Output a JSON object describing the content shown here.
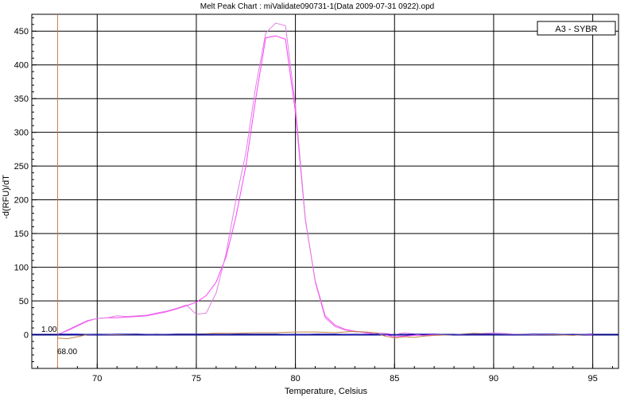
{
  "chart_data": {
    "type": "line",
    "title": "Melt Peak Chart : miValidate090731-1(Data 2009-07-31 0922).opd",
    "xlabel": "Temperature, Celsius",
    "ylabel": "-d(RFU)/dT",
    "xlim": [
      66.7,
      96.3
    ],
    "ylim": [
      -50,
      475
    ],
    "x_ticks": [
      70,
      75,
      80,
      85,
      90,
      95
    ],
    "y_ticks": [
      0,
      50,
      100,
      150,
      200,
      250,
      300,
      350,
      400,
      450
    ],
    "grid": true,
    "legend": {
      "position": "top-right",
      "entries": [
        "A3 - SYBR"
      ]
    },
    "threshold": {
      "value": 0,
      "label": "1.00",
      "color": "#000080"
    },
    "begin_marker": {
      "value": 68.0,
      "label": "68.00",
      "color": "#c87850"
    },
    "series": [
      {
        "color": "#ff40ff",
        "x": [
          68,
          68.5,
          69,
          69.5,
          70,
          70.5,
          71,
          71.5,
          72,
          72.5,
          73,
          73.5,
          74,
          74.5,
          75,
          75.5,
          76,
          76.5,
          77,
          77.5,
          78,
          78.5,
          79,
          79.5,
          80,
          80.5,
          81,
          81.5,
          82,
          82.5,
          83,
          83.5,
          84,
          84.5,
          85,
          85.5,
          86,
          86.5,
          87,
          88,
          89,
          90,
          91,
          92,
          93,
          94,
          95
        ],
        "y": [
          0,
          6,
          13,
          20,
          24,
          25,
          25,
          26,
          27,
          28,
          31,
          34,
          38,
          43,
          48,
          58,
          78,
          115,
          175,
          250,
          350,
          440,
          443,
          438,
          330,
          170,
          80,
          28,
          14,
          8,
          5,
          3,
          1,
          0,
          -3,
          -2,
          -1,
          -1,
          0,
          0,
          1,
          1,
          0,
          1,
          0,
          0,
          0
        ]
      },
      {
        "color": "#e080e0",
        "x": [
          68,
          68.5,
          69,
          69.5,
          70,
          70.5,
          71,
          71.5,
          72,
          72.5,
          73,
          73.5,
          74,
          74.5,
          75,
          75.5,
          76,
          76.5,
          77,
          77.5,
          78,
          78.5,
          79,
          79.5,
          80,
          80.5,
          81,
          81.5,
          82,
          82.5,
          83,
          83.5,
          84,
          84.5,
          85,
          85.5,
          86,
          86.5,
          87,
          88,
          89,
          90,
          91,
          92,
          93,
          94,
          95
        ],
        "y": [
          0,
          7,
          14,
          21,
          24,
          25,
          28,
          27,
          28,
          29,
          32,
          35,
          39,
          44,
          30,
          32,
          62,
          120,
          200,
          270,
          368,
          447,
          462,
          458,
          340,
          172,
          78,
          25,
          12,
          7,
          4,
          4,
          3,
          2,
          0,
          3,
          1,
          -2,
          -1,
          0,
          1,
          3,
          1,
          0,
          1,
          0,
          1
        ]
      },
      {
        "color": "#c08040",
        "x": [
          68,
          68.5,
          69,
          69.5,
          70,
          71,
          72,
          73,
          74,
          75,
          76,
          77,
          78,
          79,
          80,
          81,
          82,
          83,
          84,
          84.5,
          85,
          85.5,
          86,
          86.5,
          87,
          88,
          89,
          90,
          91,
          92,
          93,
          94,
          95
        ],
        "y": [
          -5,
          -6,
          -3,
          0,
          0,
          0,
          1,
          0,
          1,
          1,
          2,
          2,
          3,
          3,
          4,
          4,
          3,
          5,
          3,
          -2,
          -5,
          -3,
          -4,
          -2,
          -1,
          0,
          2,
          1,
          0,
          1,
          0,
          -1,
          1
        ]
      },
      {
        "color": "#2020c0",
        "x": [
          68,
          69,
          70,
          71,
          72,
          73,
          74,
          75,
          76,
          77,
          78,
          79,
          80,
          81,
          82,
          83,
          84,
          85,
          86,
          87,
          88,
          89,
          90,
          91,
          92,
          93,
          94,
          95
        ],
        "y": [
          1,
          1,
          0,
          1,
          1,
          0,
          1,
          1,
          0,
          1,
          1,
          1,
          0,
          1,
          1,
          0,
          1,
          0,
          1,
          1,
          0,
          1,
          1,
          0,
          1,
          1,
          0,
          1
        ]
      }
    ]
  }
}
